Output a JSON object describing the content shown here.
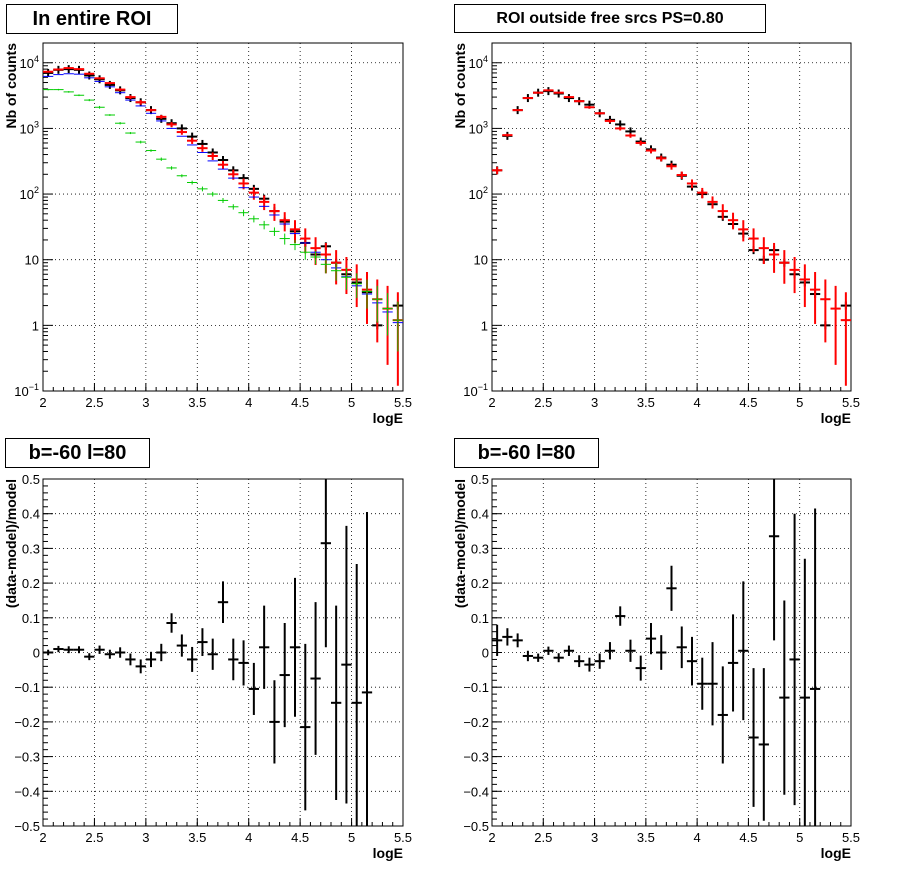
{
  "colors": {
    "data": "#000000",
    "model_total": "#ff0000",
    "model_blue": "#0000ff",
    "model_green": "#00cc00",
    "grid": "#000000",
    "frame": "#000000"
  },
  "chart_data": [
    {
      "id": "top-left",
      "type": "scatter",
      "title": "In entire ROI",
      "xlabel": "logE",
      "ylabel": "Nb of counts",
      "xlim": [
        2,
        5.5
      ],
      "ylim": [
        0.1,
        20000
      ],
      "log_y": true,
      "grid": true,
      "x_ticks": [
        "2",
        "2.5",
        "3",
        "3.5",
        "4",
        "4.5",
        "5",
        "5.5"
      ],
      "y_ticks": [
        {
          "value": 0.1,
          "base": "10",
          "exp": "-1"
        },
        {
          "value": 1,
          "label": "1"
        },
        {
          "value": 10,
          "label": "10"
        },
        {
          "value": 100,
          "base": "10",
          "exp": "2"
        },
        {
          "value": 1000,
          "base": "10",
          "exp": "3"
        },
        {
          "value": 10000,
          "base": "10",
          "exp": "4"
        }
      ],
      "x": [
        2.05,
        2.15,
        2.25,
        2.35,
        2.45,
        2.55,
        2.65,
        2.75,
        2.85,
        2.95,
        3.05,
        3.15,
        3.25,
        3.35,
        3.45,
        3.55,
        3.65,
        3.75,
        3.85,
        3.95,
        4.05,
        4.15,
        4.25,
        4.35,
        4.45,
        4.55,
        4.65,
        4.75,
        4.85,
        4.95,
        5.05,
        5.15,
        5.25,
        5.35,
        5.45
      ],
      "series": [
        {
          "color_key": "data",
          "style": "cross",
          "values": [
            7000,
            7800,
            8000,
            7800,
            6400,
            5600,
            4600,
            3800,
            2900,
            2500,
            1900,
            1400,
            1200,
            1000,
            750,
            580,
            430,
            330,
            230,
            175,
            120,
            85,
            55,
            38,
            27,
            18,
            12,
            16,
            9,
            6,
            4.5,
            3.2,
            1,
            0.07,
            2
          ]
        },
        {
          "color_key": "model_total",
          "style": "errorbar",
          "values": [
            7300,
            7900,
            8300,
            8000,
            6800,
            5800,
            4900,
            3900,
            3000,
            2500,
            1900,
            1500,
            1150,
            880,
            650,
            500,
            380,
            280,
            200,
            145,
            105,
            76,
            55,
            40,
            29,
            21,
            15,
            12,
            9,
            7,
            5,
            3.5,
            2.5,
            1.8,
            1.2
          ],
          "upper": [
            7500,
            8100,
            8500,
            8200,
            7000,
            6000,
            5100,
            4100,
            3200,
            2700,
            2000,
            1600,
            1250,
            960,
            720,
            560,
            430,
            320,
            235,
            172,
            128,
            95,
            71,
            53,
            40,
            30,
            22,
            18,
            14,
            11,
            8.5,
            6.5,
            5,
            4,
            3.2
          ],
          "lower": [
            7100,
            7700,
            8100,
            7800,
            6600,
            5600,
            4700,
            3700,
            2800,
            2300,
            1800,
            1400,
            1050,
            800,
            580,
            440,
            330,
            240,
            165,
            118,
            82,
            57,
            39,
            27,
            18,
            12.5,
            8.3,
            6.2,
            4.2,
            3,
            1.9,
            1.05,
            0.55,
            0.25,
            0.12
          ]
        },
        {
          "color_key": "model_blue",
          "style": "cross",
          "values": [
            6200,
            6600,
            6800,
            6700,
            5900,
            5200,
            4300,
            3500,
            2700,
            2200,
            1700,
            1300,
            1000,
            760,
            560,
            430,
            320,
            240,
            175,
            125,
            90,
            65,
            48,
            35,
            25,
            18,
            13,
            10,
            7.5,
            5.5,
            4,
            3,
            2.2,
            1.6,
            1.1
          ]
        },
        {
          "color_key": "model_green",
          "style": "errorbar",
          "values": [
            3900,
            3900,
            3600,
            3200,
            2700,
            2100,
            1600,
            1200,
            850,
            620,
            460,
            340,
            250,
            190,
            150,
            120,
            100,
            80,
            64,
            52,
            42,
            34,
            27,
            21,
            17,
            13,
            11,
            8.5,
            6.8,
            5.4,
            4.3,
            3.3,
            2.5,
            1.8,
            1.2
          ],
          "upper": [
            4000,
            4000,
            3700,
            3300,
            2800,
            2200,
            1650,
            1250,
            880,
            650,
            480,
            360,
            265,
            200,
            160,
            130,
            108,
            87,
            70,
            58,
            47,
            39,
            31,
            25,
            20,
            16,
            13.5,
            11,
            9,
            7.5,
            6.2,
            5,
            4,
            3.1,
            2.3
          ],
          "lower": [
            3800,
            3800,
            3500,
            3100,
            2600,
            2000,
            1550,
            1150,
            820,
            590,
            440,
            320,
            235,
            180,
            140,
            110,
            92,
            73,
            58,
            46,
            37,
            29,
            23,
            17,
            14,
            10,
            8.5,
            6.2,
            4.8,
            3.5,
            2.6,
            1.8,
            1.1,
            0.7,
            0.4
          ]
        }
      ]
    },
    {
      "id": "top-right",
      "type": "scatter",
      "title": "ROI outside free srcs PS=0.80",
      "xlabel": "logE",
      "ylabel": "Nb of counts",
      "xlim": [
        2,
        5.5
      ],
      "ylim": [
        0.1,
        20000
      ],
      "log_y": true,
      "grid": true,
      "x_ticks": [
        "2",
        "2.5",
        "3",
        "3.5",
        "4",
        "4.5",
        "5",
        "5.5"
      ],
      "y_ticks": [
        {
          "value": 0.1,
          "base": "10",
          "exp": "-1"
        },
        {
          "value": 1,
          "label": "1"
        },
        {
          "value": 10,
          "label": "10"
        },
        {
          "value": 100,
          "base": "10",
          "exp": "2"
        },
        {
          "value": 1000,
          "base": "10",
          "exp": "3"
        },
        {
          "value": 10000,
          "base": "10",
          "exp": "4"
        }
      ],
      "x": [
        2.05,
        2.15,
        2.25,
        2.35,
        2.45,
        2.55,
        2.65,
        2.75,
        2.85,
        2.95,
        3.05,
        3.15,
        3.25,
        3.35,
        3.45,
        3.55,
        3.65,
        3.75,
        3.85,
        3.95,
        4.05,
        4.15,
        4.25,
        4.35,
        4.45,
        4.55,
        4.65,
        4.75,
        4.85,
        4.95,
        5.05,
        5.15,
        5.25,
        5.35,
        5.45
      ],
      "series": [
        {
          "color_key": "data",
          "style": "cross",
          "values": [
            230,
            770,
            1900,
            2900,
            3500,
            3700,
            3400,
            2900,
            2600,
            2300,
            1700,
            1350,
            1150,
            900,
            630,
            480,
            360,
            280,
            190,
            130,
            100,
            70,
            45,
            35,
            25,
            14,
            10,
            14,
            9,
            6,
            4.5,
            3,
            1,
            0.07,
            2
          ]
        },
        {
          "color_key": "model_total",
          "style": "errorbar",
          "values": [
            230,
            790,
            1900,
            2900,
            3500,
            3800,
            3500,
            3000,
            2600,
            2100,
            1700,
            1300,
            1000,
            780,
            600,
            460,
            350,
            265,
            195,
            145,
            105,
            76,
            55,
            40,
            29,
            21,
            15,
            12,
            9,
            7,
            5,
            3.5,
            2.5,
            1.8,
            1.2
          ],
          "upper": [
            260,
            830,
            1950,
            2980,
            3600,
            3900,
            3600,
            3100,
            2700,
            2200,
            1780,
            1380,
            1070,
            840,
            650,
            500,
            385,
            295,
            220,
            167,
            124,
            92,
            70,
            52,
            40,
            30,
            22,
            18,
            14,
            11,
            8.5,
            6.5,
            5,
            4,
            3.2
          ],
          "lower": [
            200,
            750,
            1850,
            2820,
            3400,
            3700,
            3400,
            2900,
            2500,
            2000,
            1620,
            1220,
            930,
            720,
            550,
            420,
            315,
            235,
            170,
            123,
            86,
            60,
            41,
            29,
            19,
            13,
            8.6,
            6.3,
            4.3,
            3.1,
            1.9,
            1.05,
            0.55,
            0.25,
            0.12
          ]
        }
      ]
    },
    {
      "id": "bottom-left",
      "type": "scatter",
      "title": "b=-60 l=80",
      "xlabel": "logE",
      "ylabel": "(data-model)/model",
      "xlim": [
        2,
        5.5
      ],
      "ylim": [
        -0.5,
        0.5
      ],
      "log_y": false,
      "grid": true,
      "x_ticks": [
        "2",
        "2.5",
        "3",
        "3.5",
        "4",
        "4.5",
        "5",
        "5.5"
      ],
      "y_ticks": [
        "−0.5",
        "−0.4",
        "−0.3",
        "−0.2",
        "−0.1",
        "0",
        "0.1",
        "0.2",
        "0.3",
        "0.4",
        "0.5"
      ],
      "x": [
        2.05,
        2.15,
        2.25,
        2.35,
        2.45,
        2.55,
        2.65,
        2.75,
        2.85,
        2.95,
        3.05,
        3.15,
        3.25,
        3.35,
        3.45,
        3.55,
        3.65,
        3.75,
        3.85,
        3.95,
        4.05,
        4.15,
        4.25,
        4.35,
        4.45,
        4.55,
        4.65,
        4.75,
        4.85,
        4.95,
        5.05,
        5.15
      ],
      "series": [
        {
          "color_key": "data",
          "style": "errorbar",
          "values": [
            0.0,
            0.01,
            0.008,
            0.008,
            -0.012,
            0.008,
            -0.005,
            0.0,
            -0.02,
            -0.04,
            -0.02,
            0.0,
            0.085,
            0.02,
            -0.02,
            0.03,
            -0.005,
            0.145,
            -0.02,
            -0.03,
            -0.105,
            0.015,
            -0.2,
            -0.065,
            0.015,
            -0.215,
            -0.075,
            0.315,
            -0.145,
            -0.035,
            -0.145,
            -0.115
          ],
          "err": [
            0.008,
            0.009,
            0.01,
            0.01,
            0.01,
            0.012,
            0.013,
            0.015,
            0.017,
            0.02,
            0.022,
            0.025,
            0.028,
            0.032,
            0.036,
            0.04,
            0.045,
            0.06,
            0.06,
            0.065,
            0.075,
            0.12,
            0.12,
            0.15,
            0.2,
            0.24,
            0.22,
            0.3,
            0.28,
            0.4,
            0.4,
            0.52
          ]
        }
      ]
    },
    {
      "id": "bottom-right",
      "type": "scatter",
      "title": "b=-60 l=80",
      "xlabel": "logE",
      "ylabel": "(data-model)/model",
      "xlim": [
        2,
        5.5
      ],
      "ylim": [
        -0.5,
        0.5
      ],
      "log_y": false,
      "grid": true,
      "x_ticks": [
        "2",
        "2.5",
        "3",
        "3.5",
        "4",
        "4.5",
        "5",
        "5.5"
      ],
      "y_ticks": [
        "−0.5",
        "−0.4",
        "−0.3",
        "−0.2",
        "−0.1",
        "0",
        "0.1",
        "0.2",
        "0.3",
        "0.4",
        "0.5"
      ],
      "x": [
        2.05,
        2.15,
        2.25,
        2.35,
        2.45,
        2.55,
        2.65,
        2.75,
        2.85,
        2.95,
        3.05,
        3.15,
        3.25,
        3.35,
        3.45,
        3.55,
        3.65,
        3.75,
        3.85,
        3.95,
        4.05,
        4.15,
        4.25,
        4.35,
        4.45,
        4.55,
        4.65,
        4.75,
        4.85,
        4.95,
        5.05,
        5.15
      ],
      "series": [
        {
          "color_key": "data",
          "style": "errorbar",
          "values": [
            0.035,
            0.045,
            0.035,
            -0.01,
            -0.015,
            0.005,
            -0.015,
            0.005,
            -0.025,
            -0.035,
            -0.025,
            0.005,
            0.105,
            0.005,
            -0.045,
            0.04,
            0.0,
            0.185,
            0.015,
            -0.025,
            -0.09,
            -0.09,
            -0.18,
            -0.03,
            0.005,
            -0.245,
            -0.265,
            0.335,
            -0.13,
            -0.02,
            -0.13,
            -0.105
          ],
          "err": [
            0.045,
            0.025,
            0.02,
            0.015,
            0.012,
            0.012,
            0.013,
            0.015,
            0.017,
            0.02,
            0.022,
            0.025,
            0.028,
            0.032,
            0.036,
            0.045,
            0.05,
            0.065,
            0.06,
            0.07,
            0.075,
            0.12,
            0.14,
            0.14,
            0.2,
            0.2,
            0.22,
            0.3,
            0.28,
            0.42,
            0.4,
            0.52
          ]
        }
      ]
    }
  ]
}
